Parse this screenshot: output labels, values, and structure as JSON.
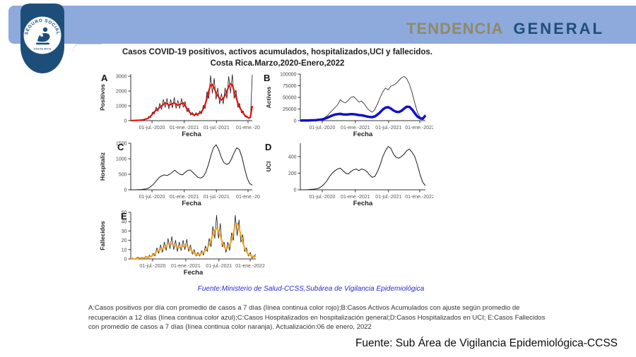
{
  "header": {
    "title_part1": "TENDENCIA",
    "title_part2": "GENERAL",
    "logo": {
      "text_top": "SEGURO SOCIAL",
      "text_bottom": "COSTA RICA"
    }
  },
  "figure": {
    "title_line1": "Casos COVID-19 positivos, activos acumulados, hospitalizados,UCI y fallecidos.",
    "title_line2": "Costa Rica.Marzo,2020-Enero,2022",
    "source_inline": "Fuente:Ministerio de Salud-CCSS,Subárea de Vigilancia Epidemiológica"
  },
  "caption": "A:Casos positivos por día con promedio de casos a 7 días (línea continua color rojo);B:Casos Activos Acumulados con ajuste según promedio de recuperación a 12 días (línea continua color azul);C:Casos Hospitalizados en hospitalización general;D:Casos Hospitalizados en UCI; E:Casos Fallecidos con promedio de casos a 7 días (línea continua color naranja). Actualización:06 de enero, 2022",
  "footer_source": "Fuente: Sub Área de Vigilancia Epidemiológica-CCSS",
  "colors": {
    "banner": "#8ea9db",
    "title_part1": "#8e8a6a",
    "title_part2": "#1f4e79",
    "logo_blue": "#1d4e7a",
    "series_red": "#e8110b",
    "series_blue": "#1010cf",
    "series_orange": "#ffa51e",
    "series_black": "#1a1a1a",
    "source_inline_blue": "#2a2ad4"
  },
  "chart_data": {
    "type": "line",
    "x_range": "Marzo 2020 - Enero 2022",
    "charts": [
      {
        "letter": "A",
        "ylabel": "Positivos",
        "xlabel": "Fecha",
        "ylim": [
          0,
          3150
        ],
        "yticks": [
          {
            "v": 0,
            "label": "0"
          },
          {
            "v": 1000,
            "label": "1000"
          },
          {
            "v": 2000,
            "label": "2000"
          },
          {
            "v": 3000,
            "label": "3000"
          }
        ],
        "xticks": [
          {
            "pos": 0.175,
            "label": "01-jul.-2020"
          },
          {
            "pos": 0.44,
            "label": "01-ene.-2021"
          },
          {
            "pos": 0.705,
            "label": "01-jul.-2021"
          },
          {
            "pos": 0.965,
            "label": "01-ene.-20"
          }
        ],
        "series": [
          {
            "name": "Casos positivos por día",
            "color": "#1a1a1a",
            "width": 0.8,
            "values": [
              8,
              5,
              20,
              12,
              38,
              22,
              65,
              45,
              130,
              95,
              290,
              210,
              580,
              450,
              920,
              620,
              1170,
              760,
              1430,
              900,
              1500,
              790,
              1430,
              860,
              1560,
              830,
              1370,
              820,
              1500,
              900,
              1300,
              600,
              850,
              380,
              560,
              300,
              550,
              330,
              650,
              450,
              1040,
              820,
              1950,
              1500,
              3050,
              1850,
              2870,
              1430,
              2210,
              1130,
              1820,
              1130,
              2210,
              1500,
              2990,
              1870,
              3120,
              1500,
              2080,
              900,
              1170,
              530,
              650,
              260,
              330,
              140,
              190,
              3100
            ]
          },
          {
            "name": "Promedio 7 días",
            "color": "#e8110b",
            "width": 2.2,
            "values": [
              5,
              8,
              12,
              18,
              25,
              32,
              45,
              60,
              90,
              130,
              200,
              300,
              450,
              600,
              700,
              800,
              900,
              1000,
              1100,
              1200,
              1150,
              1050,
              1100,
              1150,
              1200,
              1100,
              1050,
              1100,
              1150,
              1200,
              1000,
              800,
              650,
              500,
              430,
              400,
              420,
              450,
              500,
              600,
              800,
              1100,
              1500,
              2000,
              2400,
              2450,
              2200,
              1900,
              1700,
              1500,
              1400,
              1500,
              1700,
              2000,
              2300,
              2500,
              2400,
              2000,
              1600,
              1200,
              900,
              700,
              500,
              350,
              250,
              180,
              250,
              1000
            ]
          }
        ]
      },
      {
        "letter": "B",
        "ylabel": "Activos",
        "xlabel": "Fecha",
        "ylim": [
          0,
          100000
        ],
        "yticks": [
          {
            "v": 0,
            "label": "0"
          },
          {
            "v": 25000,
            "label": "25000"
          },
          {
            "v": 50000,
            "label": "50000"
          },
          {
            "v": 75000,
            "label": "75000"
          },
          {
            "v": 100000,
            "label": "100000"
          }
        ],
        "xticks": [
          {
            "pos": 0.175,
            "label": "01-jul.-2020"
          },
          {
            "pos": 0.44,
            "label": "01-ene.-2021"
          },
          {
            "pos": 0.705,
            "label": "01-jul.-2021"
          },
          {
            "pos": 0.955,
            "label": "01-ene.-2022"
          }
        ],
        "series": [
          {
            "name": "Casos activos acumulados",
            "color": "#1a1a1a",
            "width": 0.8,
            "values": [
              0,
              0,
              0,
              100,
              300,
              600,
              1000,
              1800,
              3000,
              6000,
              10000,
              16000,
              22000,
              28000,
              34000,
              45000,
              40000,
              38000,
              44000,
              50000,
              52000,
              46000,
              40000,
              42000,
              36000,
              28000,
              22000,
              18000,
              24000,
              36000,
              50000,
              62000,
              70000,
              66000,
              74000,
              76000,
              80000,
              86000,
              92000,
              95000,
              90000,
              78000,
              60000,
              38000,
              18000,
              8000,
              5000,
              13000
            ]
          },
          {
            "name": "Activos con ajuste (recuperación 12 días)",
            "color": "#1010cf",
            "width": 3.5,
            "values": [
              200,
              300,
              400,
              500,
              700,
              900,
              1200,
              1800,
              2500,
              4000,
              6000,
              8500,
              11000,
              13000,
              14000,
              14500,
              13500,
              13000,
              13500,
              14000,
              13800,
              13000,
              12000,
              11500,
              10500,
              9000,
              8000,
              7500,
              9000,
              13000,
              18000,
              24000,
              28000,
              29000,
              26000,
              22000,
              19000,
              18500,
              21000,
              26000,
              30000,
              29500,
              24000,
              16000,
              9000,
              5000,
              4000,
              11000
            ]
          }
        ]
      },
      {
        "letter": "C",
        "ylabel": "Hospitaliz",
        "xlabel": "Fecha",
        "ylim": [
          0,
          1500
        ],
        "yticks": [
          {
            "v": 0,
            "label": "0"
          },
          {
            "v": 500,
            "label": "500"
          },
          {
            "v": 1000,
            "label": "1000"
          },
          {
            "v": 1500,
            "label": "1500"
          }
        ],
        "xticks": [
          {
            "pos": 0.175,
            "label": "01-jul.-2020"
          },
          {
            "pos": 0.44,
            "label": "01-ene.-2021"
          },
          {
            "pos": 0.705,
            "label": "01-jul.-2021"
          },
          {
            "pos": 0.965,
            "label": "01-ene.-20"
          }
        ],
        "series": [
          {
            "name": "Hospitalización general",
            "color": "#1a1a1a",
            "width": 1,
            "values": [
              0,
              0,
              0,
              5,
              10,
              20,
              30,
              60,
              120,
              200,
              300,
              400,
              450,
              480,
              460,
              500,
              560,
              630,
              560,
              500,
              480,
              560,
              620,
              640,
              560,
              480,
              400,
              380,
              420,
              560,
              800,
              1100,
              1350,
              1450,
              1300,
              1050,
              880,
              820,
              850,
              1000,
              1200,
              1350,
              1300,
              1050,
              700,
              380,
              200,
              150
            ]
          }
        ]
      },
      {
        "letter": "D",
        "ylabel": "UCI",
        "xlabel": "Fecha",
        "ylim": [
          0,
          560
        ],
        "yticks": [
          {
            "v": 0,
            "label": "0"
          },
          {
            "v": 200,
            "label": "200"
          },
          {
            "v": 400,
            "label": "400"
          }
        ],
        "xticks": [
          {
            "pos": 0.175,
            "label": "01-jul.-2020"
          },
          {
            "pos": 0.44,
            "label": "01-ene.-2021"
          },
          {
            "pos": 0.705,
            "label": "01-jul.-2021"
          },
          {
            "pos": 0.955,
            "label": "01-ene.-2022"
          }
        ],
        "series": [
          {
            "name": "Hospitalizados en UCI",
            "color": "#1a1a1a",
            "width": 1,
            "values": [
              0,
              0,
              0,
              2,
              5,
              8,
              12,
              20,
              40,
              70,
              110,
              160,
              200,
              230,
              250,
              260,
              230,
              200,
              190,
              220,
              240,
              250,
              230,
              250,
              240,
              220,
              180,
              150,
              160,
              220,
              300,
              400,
              470,
              520,
              500,
              430,
              390,
              380,
              400,
              430,
              470,
              490,
              450,
              400,
              300,
              180,
              90,
              50
            ]
          }
        ]
      },
      {
        "letter": "E",
        "ylabel": "Fallecidos",
        "xlabel": "Fecha",
        "ylim": [
          0,
          50
        ],
        "yticks": [
          {
            "v": 0,
            "label": "0"
          },
          {
            "v": 10,
            "label": "10"
          },
          {
            "v": 20,
            "label": "20"
          },
          {
            "v": 30,
            "label": "30"
          },
          {
            "v": 40,
            "label": "40"
          },
          {
            "v": 50,
            "label": "50"
          }
        ],
        "xticks": [
          {
            "pos": 0.175,
            "label": "01-jul.-2020"
          },
          {
            "pos": 0.44,
            "label": "01-ene.-2021"
          },
          {
            "pos": 0.705,
            "label": "01-jul.-2021"
          },
          {
            "pos": 0.955,
            "label": "01-ene.-2022"
          }
        ],
        "series": [
          {
            "name": "Fallecidos por día",
            "color": "#1a1a1a",
            "width": 0.8,
            "values": [
              0,
              1,
              0,
              1,
              2,
              0,
              2,
              0,
              3,
              1,
              4,
              2,
              6,
              3,
              12,
              6,
              15,
              7,
              18,
              9,
              22,
              11,
              24,
              10,
              20,
              8,
              18,
              9,
              20,
              10,
              21,
              8,
              15,
              5,
              10,
              3,
              7,
              3,
              9,
              4,
              14,
              8,
              22,
              13,
              35,
              22,
              47,
              22,
              38,
              13,
              18,
              7,
              18,
              9,
              28,
              20,
              47,
              25,
              42,
              18,
              26,
              8,
              12,
              3,
              7,
              1,
              3,
              5
            ]
          },
          {
            "name": "Promedio 7 días",
            "color": "#ffa51e",
            "width": 2.2,
            "values": [
              0,
              0,
              0,
              0,
              1,
              1,
              1,
              1,
              2,
              2,
              2,
              3,
              4,
              6,
              8,
              9,
              10,
              11,
              12,
              14,
              16,
              17,
              16,
              15,
              14,
              13,
              12,
              13,
              14,
              15,
              14,
              12,
              10,
              8,
              6,
              5,
              4,
              5,
              6,
              7,
              9,
              12,
              15,
              20,
              26,
              31,
              33,
              30,
              25,
              18,
              13,
              11,
              12,
              15,
              20,
              28,
              36,
              38,
              33,
              26,
              18,
              12,
              8,
              5,
              4,
              3,
              2,
              3
            ]
          }
        ]
      }
    ]
  }
}
